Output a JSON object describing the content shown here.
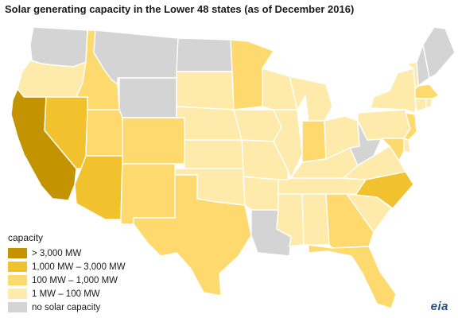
{
  "title": "Solar generating capacity in the Lower 48 states (as of December 2016)",
  "legend": {
    "title": "capacity",
    "items": [
      {
        "label": "> 3,000 MW",
        "color": "#c39300"
      },
      {
        "label": "1,000 MW – 3,000 MW",
        "color": "#f2c12e"
      },
      {
        "label": "100 MW – 1,000 MW",
        "color": "#fdd96e"
      },
      {
        "label": "1 MW – 100 MW",
        "color": "#feeaaa"
      },
      {
        "label": "no solar capacity",
        "color": "#d4d4d4"
      }
    ]
  },
  "logo": "eia",
  "states": [
    {
      "code": "WA",
      "category": 4
    },
    {
      "code": "OR",
      "category": 3
    },
    {
      "code": "CA",
      "category": 0
    },
    {
      "code": "ID",
      "category": 2
    },
    {
      "code": "NV",
      "category": 1
    },
    {
      "code": "MT",
      "category": 4
    },
    {
      "code": "WY",
      "category": 4
    },
    {
      "code": "UT",
      "category": 2
    },
    {
      "code": "AZ",
      "category": 1
    },
    {
      "code": "CO",
      "category": 2
    },
    {
      "code": "NM",
      "category": 2
    },
    {
      "code": "ND",
      "category": 4
    },
    {
      "code": "SD",
      "category": 3
    },
    {
      "code": "NE",
      "category": 3
    },
    {
      "code": "KS",
      "category": 3
    },
    {
      "code": "OK",
      "category": 3
    },
    {
      "code": "TX",
      "category": 2
    },
    {
      "code": "MN",
      "category": 2
    },
    {
      "code": "IA",
      "category": 3
    },
    {
      "code": "MO",
      "category": 3
    },
    {
      "code": "AR",
      "category": 3
    },
    {
      "code": "LA",
      "category": 4
    },
    {
      "code": "WI",
      "category": 3
    },
    {
      "code": "IL",
      "category": 3
    },
    {
      "code": "MS",
      "category": 3
    },
    {
      "code": "MI",
      "category": 3
    },
    {
      "code": "IN",
      "category": 2
    },
    {
      "code": "KY",
      "category": 3
    },
    {
      "code": "TN",
      "category": 3
    },
    {
      "code": "AL",
      "category": 3
    },
    {
      "code": "OH",
      "category": 3
    },
    {
      "code": "GA",
      "category": 2
    },
    {
      "code": "FL",
      "category": 2
    },
    {
      "code": "SC",
      "category": 3
    },
    {
      "code": "NC",
      "category": 1
    },
    {
      "code": "VA",
      "category": 3
    },
    {
      "code": "WV",
      "category": 4
    },
    {
      "code": "PA",
      "category": 3
    },
    {
      "code": "NY",
      "category": 3
    },
    {
      "code": "VT",
      "category": 3
    },
    {
      "code": "NH",
      "category": 4
    },
    {
      "code": "ME",
      "category": 4
    },
    {
      "code": "MA",
      "category": 2
    },
    {
      "code": "CT",
      "category": 3
    },
    {
      "code": "RI",
      "category": 3
    },
    {
      "code": "NJ",
      "category": 2
    },
    {
      "code": "DE",
      "category": 3
    },
    {
      "code": "MD",
      "category": 2
    }
  ]
}
